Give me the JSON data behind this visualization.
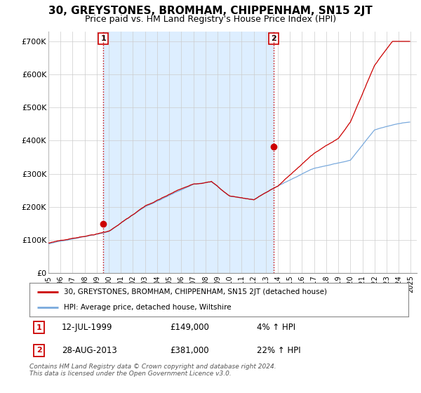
{
  "title": "30, GREYSTONES, BROMHAM, CHIPPENHAM, SN15 2JT",
  "subtitle": "Price paid vs. HM Land Registry's House Price Index (HPI)",
  "title_fontsize": 11,
  "subtitle_fontsize": 9,
  "ylabel_ticks": [
    "£0",
    "£100K",
    "£200K",
    "£300K",
    "£400K",
    "£500K",
    "£600K",
    "£700K"
  ],
  "ytick_values": [
    0,
    100000,
    200000,
    300000,
    400000,
    500000,
    600000,
    700000
  ],
  "ylim": [
    0,
    730000
  ],
  "xlim_start": 1995.0,
  "xlim_end": 2025.5,
  "sale1_x": 1999.54,
  "sale1_y": 149000,
  "sale1_label": "1",
  "sale2_x": 2013.65,
  "sale2_y": 381000,
  "sale2_label": "2",
  "red_line_color": "#cc0000",
  "blue_line_color": "#7aaadd",
  "shade_color": "#ddeeff",
  "marker_color": "#cc0000",
  "legend_entries": [
    "30, GREYSTONES, BROMHAM, CHIPPENHAM, SN15 2JT (detached house)",
    "HPI: Average price, detached house, Wiltshire"
  ],
  "annotation1_date": "12-JUL-1999",
  "annotation1_price": "£149,000",
  "annotation1_hpi": "4% ↑ HPI",
  "annotation2_date": "28-AUG-2013",
  "annotation2_price": "£381,000",
  "annotation2_hpi": "22% ↑ HPI",
  "footnote": "Contains HM Land Registry data © Crown copyright and database right 2024.\nThis data is licensed under the Open Government Licence v3.0.",
  "background_color": "#ffffff",
  "grid_color": "#cccccc"
}
